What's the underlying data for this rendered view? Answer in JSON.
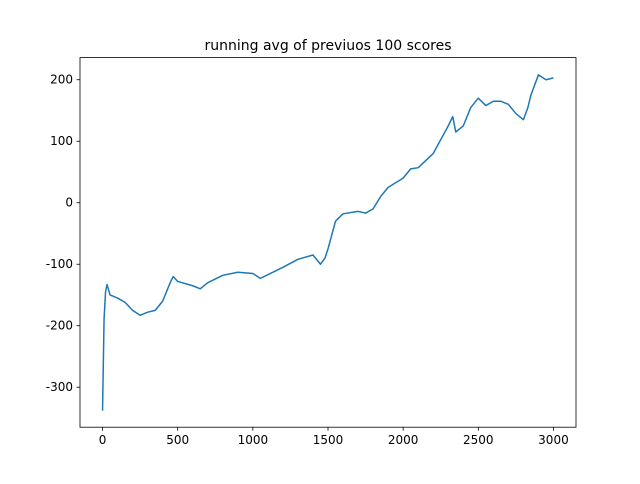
{
  "chart_data": {
    "type": "line",
    "title": "running avg of previuos 100 scores",
    "x": [
      0,
      10,
      20,
      30,
      50,
      100,
      150,
      200,
      250,
      300,
      350,
      400,
      450,
      470,
      500,
      600,
      650,
      700,
      800,
      900,
      1000,
      1050,
      1100,
      1200,
      1300,
      1400,
      1450,
      1480,
      1500,
      1550,
      1600,
      1700,
      1750,
      1800,
      1850,
      1900,
      2000,
      2050,
      2100,
      2200,
      2300,
      2330,
      2350,
      2400,
      2450,
      2500,
      2550,
      2600,
      2650,
      2700,
      2750,
      2800,
      2830,
      2850,
      2900,
      2950,
      3000
    ],
    "series": [
      {
        "color": "#1f77b4",
        "values": [
          -338,
          -190,
          -145,
          -133,
          -150,
          -155,
          -162,
          -175,
          -183,
          -178,
          -175,
          -160,
          -130,
          -120,
          -128,
          -135,
          -140,
          -130,
          -118,
          -113,
          -115,
          -123,
          -117,
          -105,
          -92,
          -85,
          -100,
          -90,
          -75,
          -30,
          -18,
          -14,
          -17,
          -10,
          10,
          25,
          40,
          55,
          57,
          80,
          125,
          140,
          115,
          125,
          155,
          170,
          158,
          165,
          165,
          160,
          145,
          135,
          155,
          175,
          208,
          200,
          203
        ]
      }
    ],
    "xlim": [
      -150,
      3150
    ],
    "ylim": [
      -365,
      236
    ],
    "xticks": [
      0,
      500,
      1000,
      1500,
      2000,
      2500,
      3000
    ],
    "yticks": [
      -300,
      -200,
      -100,
      0,
      100,
      200
    ]
  }
}
